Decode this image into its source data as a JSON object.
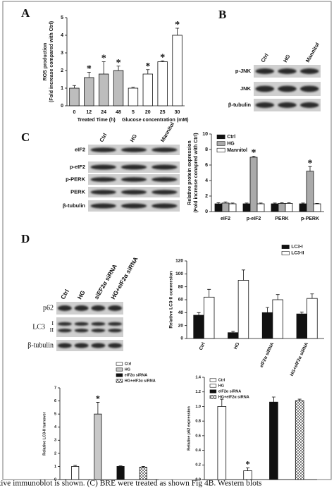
{
  "panel_labels": [
    "A",
    "B",
    "C",
    "D"
  ],
  "caption": "tive immunoblot is shown. (C) BRE were treated as shown Fig 4B. Western blots",
  "blots": [
    {
      "panel": "B",
      "lanes": [
        "Ctrl",
        "HG",
        "Mannitol"
      ],
      "rows": [
        "p-JNK",
        "JNK",
        "β-tubulin"
      ]
    },
    {
      "panel": "C",
      "lanes": [
        "Ctrl",
        "HG",
        "Mannitol"
      ],
      "rows": [
        "eIF2",
        "p-eIF2",
        "p-PERK",
        "PERK",
        "β-tubulin"
      ]
    },
    {
      "panel": "D",
      "lanes": [
        "Ctrl",
        "HG",
        "siEF2α siRNA",
        "HG+eIF2α siRNA"
      ],
      "rows": [
        {
          "label": "p62"
        },
        {
          "label": "LC3",
          "bands": [
            "I",
            "II"
          ]
        },
        {
          "label": "β-tubulin"
        }
      ]
    }
  ],
  "chart_data": [
    {
      "type": "bar",
      "ylabel": [
        "ROS production",
        "(Fold increase compared with Ctrl)"
      ],
      "ylim": [
        0,
        5
      ],
      "yticks": [
        0,
        1,
        2,
        3,
        4,
        5
      ],
      "groups": [
        {
          "name": "Treated Time (h)",
          "color": "#bdbdbd",
          "categories": [
            "0",
            "12",
            "24",
            "48"
          ],
          "values": [
            1.0,
            1.6,
            1.8,
            2.0
          ],
          "errors": [
            0.15,
            0.3,
            0.7,
            0.25
          ],
          "stars": [
            null,
            "*",
            "*",
            "*"
          ]
        },
        {
          "name": "Glucose concentration (mM)",
          "color": "#ffffff",
          "categories": [
            "5",
            "20",
            "25",
            "30"
          ],
          "values": [
            1.0,
            1.8,
            2.5,
            4.0
          ],
          "errors": [
            0.05,
            0.25,
            0.05,
            0.4
          ],
          "stars": [
            null,
            "*",
            "*",
            "*"
          ]
        }
      ]
    },
    {
      "type": "bar",
      "ylabel": [
        "Relative protein expression",
        "(Fold increase conapred with Ctrl)"
      ],
      "ylim": [
        0,
        10
      ],
      "yticks": [
        0,
        2,
        4,
        6,
        8,
        10
      ],
      "legend": "upper-left",
      "categories": [
        "eIF2",
        "p-eIF2",
        "PERK",
        "p-PERK"
      ],
      "series": [
        {
          "name": "Ctrl",
          "color": "#111111",
          "values": [
            1,
            1,
            1,
            1
          ],
          "errors": [
            0.15,
            0.1,
            0.1,
            0.1
          ]
        },
        {
          "name": "HG",
          "color": "#aaaaaa",
          "values": [
            1.1,
            7,
            1.05,
            5.2
          ],
          "errors": [
            0.15,
            0.15,
            0.1,
            0.6
          ],
          "stars": [
            null,
            "*",
            null,
            "*"
          ]
        },
        {
          "name": "Mannitol",
          "color": "#ffffff",
          "values": [
            1,
            1,
            1.05,
            1
          ],
          "errors": [
            0.1,
            0.1,
            0.1,
            0.05
          ]
        }
      ]
    },
    {
      "type": "bar",
      "ylabel": [
        "Relative LC3-II conversion"
      ],
      "ylim": [
        0,
        120
      ],
      "yticks": [
        0,
        20,
        40,
        60,
        80,
        100,
        120
      ],
      "legend": "upper-right",
      "categories": [
        "Ctrl",
        "HG",
        "eIF2α siRNA",
        "HG+eIF2α siRNA"
      ],
      "series": [
        {
          "name": "LC3-I",
          "color": "#111111",
          "values": [
            36,
            9,
            40,
            38
          ],
          "errors": [
            4,
            2,
            8,
            3
          ]
        },
        {
          "name": "LC3-II",
          "color": "#ffffff",
          "values": [
            64,
            90,
            60,
            62
          ],
          "errors": [
            12,
            16,
            8,
            7
          ]
        }
      ]
    },
    {
      "type": "bar",
      "ylabel": [
        "Relative LC3-II turnover"
      ],
      "ylim": [
        0,
        7
      ],
      "yticks": [
        0,
        1,
        2,
        3,
        4,
        5,
        6,
        7
      ],
      "legend": "upper-right",
      "categories": [
        null
      ],
      "series": [
        {
          "name": "Ctrl",
          "color": "#ffffff",
          "values": [
            1.0
          ],
          "errors": [
            0.08
          ]
        },
        {
          "name": "HG",
          "color": "#c8c8c8",
          "values": [
            5.0
          ],
          "errors": [
            0.9
          ],
          "stars": [
            "*"
          ]
        },
        {
          "name": "eIF2α siRNA",
          "color": "#111111",
          "values": [
            1.0
          ],
          "errors": [
            0.05
          ]
        },
        {
          "name": "HG+eIF2α siRNA",
          "color": "#ffffff",
          "pattern": "checker",
          "values": [
            0.95
          ],
          "errors": [
            0.05
          ]
        }
      ]
    },
    {
      "type": "bar",
      "ylabel": [
        "Relative p62 expression"
      ],
      "ylim": [
        0,
        1.4
      ],
      "yticks": [
        {
          "value": 0,
          "label": "0.0"
        },
        {
          "value": 0.2,
          "label": "0.2"
        },
        {
          "value": 0.4,
          "label": "0.4"
        },
        {
          "value": 0.6,
          "label": "0.6"
        },
        {
          "value": 0.8,
          "label": "0.8"
        },
        {
          "value": 1.0,
          "label": "1.0"
        },
        {
          "value": 1.2,
          "label": "1.2"
        },
        {
          "value": 1.4,
          "label": "1.4"
        }
      ],
      "legend": "upper-left",
      "categories": [
        null
      ],
      "series": [
        {
          "name": "Ctrl",
          "color": "#ffffff",
          "values": [
            1.0
          ],
          "errors": [
            0.1
          ]
        },
        {
          "name": "HG",
          "color": "#ffffff",
          "values": [
            0.12
          ],
          "errors": [
            0.04
          ],
          "stars": [
            "*"
          ]
        },
        {
          "name": "eIF2α siRNA",
          "color": "#111111",
          "values": [
            1.06
          ],
          "errors": [
            0.07
          ]
        },
        {
          "name": "HG+eIF2α siRNA",
          "color": "#ffffff",
          "pattern": "checker",
          "values": [
            1.08
          ],
          "errors": [
            0.02
          ]
        }
      ]
    }
  ]
}
